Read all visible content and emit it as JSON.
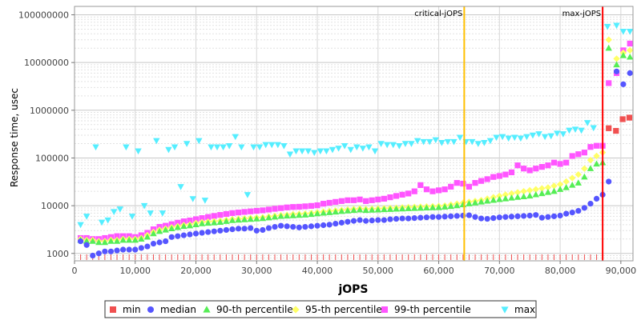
{
  "chart_data": {
    "type": "scatter",
    "title": "",
    "xlabel": "jOPS",
    "ylabel": "Response time, usec",
    "y_scale": "log",
    "xlim": [
      0,
      92000
    ],
    "ylim": [
      700,
      150000000
    ],
    "grid": true,
    "legend_placement": "bottom",
    "x_tick_labels": [
      "0",
      "10,000",
      "20,000",
      "30,000",
      "40,000",
      "50,000",
      "60,000",
      "70,000",
      "80,000",
      "90,000"
    ],
    "y_tick_labels": [
      "1000",
      "10000",
      "100000",
      "1000000",
      "10000000",
      "100000000"
    ],
    "annotations": [
      {
        "label": "critical-jOPS",
        "x": 64200,
        "color": "#ffc000"
      },
      {
        "label": "max-jOPS",
        "x": 87000,
        "color": "#ff0000"
      }
    ],
    "series": [
      {
        "name": "min",
        "color": "#f05050",
        "marker": "square",
        "x": [
          88000,
          89200,
          90300,
          91400
        ],
        "y": [
          420000,
          370000,
          650000,
          700000
        ]
      },
      {
        "name": "median",
        "color": "#5555ff",
        "marker": "circle",
        "x": [
          1000,
          2000,
          3000,
          4000,
          5000,
          6000,
          7000,
          8000,
          9000,
          10000,
          11000,
          12000,
          13000,
          14000,
          15000,
          16000,
          17000,
          18000,
          19000,
          20000,
          21000,
          22000,
          23000,
          24000,
          25000,
          26000,
          27000,
          28000,
          29000,
          30000,
          31000,
          32000,
          33000,
          34000,
          35000,
          36000,
          37000,
          38000,
          39000,
          40000,
          41000,
          42000,
          43000,
          44000,
          45000,
          46000,
          47000,
          48000,
          49000,
          50000,
          51000,
          52000,
          53000,
          54000,
          55000,
          56000,
          57000,
          58000,
          59000,
          60000,
          61000,
          62000,
          63000,
          64000,
          65000,
          66000,
          67000,
          68000,
          69000,
          70000,
          71000,
          72000,
          73000,
          74000,
          75000,
          76000,
          77000,
          78000,
          79000,
          80000,
          81000,
          82000,
          83000,
          84000,
          85000,
          86000,
          87000,
          88000,
          89300,
          90400,
          91500
        ],
        "y": [
          1800,
          1500,
          900,
          1000,
          1100,
          1100,
          1150,
          1200,
          1200,
          1200,
          1300,
          1400,
          1600,
          1700,
          1800,
          2200,
          2300,
          2400,
          2500,
          2600,
          2700,
          2800,
          2900,
          3000,
          3100,
          3200,
          3300,
          3300,
          3400,
          3000,
          3100,
          3400,
          3600,
          3800,
          3700,
          3600,
          3500,
          3600,
          3700,
          3800,
          3900,
          4000,
          4200,
          4400,
          4600,
          4800,
          5000,
          4800,
          4900,
          5000,
          5000,
          5200,
          5300,
          5400,
          5400,
          5500,
          5600,
          5700,
          5800,
          5800,
          5900,
          6000,
          6100,
          6200,
          6300,
          5800,
          5400,
          5300,
          5500,
          5700,
          5800,
          5900,
          6000,
          6100,
          6200,
          6400,
          5600,
          5800,
          6000,
          6200,
          6800,
          7200,
          7800,
          9000,
          11000,
          14000,
          17000,
          32000,
          6500000,
          3500000,
          6000000
        ]
      },
      {
        "name": "90-th percentile",
        "color": "#55ee55",
        "marker": "triangle-up",
        "x": [
          1000,
          2000,
          3000,
          4000,
          5000,
          6000,
          7000,
          8000,
          9000,
          10000,
          11000,
          12000,
          13000,
          14000,
          15000,
          16000,
          17000,
          18000,
          19000,
          20000,
          21000,
          22000,
          23000,
          24000,
          25000,
          26000,
          27000,
          28000,
          29000,
          30000,
          31000,
          32000,
          33000,
          34000,
          35000,
          36000,
          37000,
          38000,
          39000,
          40000,
          41000,
          42000,
          43000,
          44000,
          45000,
          46000,
          47000,
          48000,
          49000,
          50000,
          51000,
          52000,
          53000,
          54000,
          55000,
          56000,
          57000,
          58000,
          59000,
          60000,
          61000,
          62000,
          63000,
          64000,
          65000,
          66000,
          67000,
          68000,
          69000,
          70000,
          71000,
          72000,
          73000,
          74000,
          75000,
          76000,
          77000,
          78000,
          79000,
          80000,
          81000,
          82000,
          83000,
          84000,
          85000,
          86000,
          87000,
          88000,
          89300,
          90400,
          91500
        ],
        "y": [
          1900,
          1800,
          1800,
          1700,
          1700,
          1800,
          1800,
          1900,
          1900,
          1900,
          2000,
          2200,
          2600,
          2900,
          3100,
          3300,
          3500,
          3700,
          3800,
          4000,
          4200,
          4300,
          4400,
          4500,
          4700,
          4900,
          5000,
          5100,
          5200,
          5300,
          5400,
          5600,
          5800,
          6000,
          6100,
          6200,
          6300,
          6400,
          6600,
          6800,
          7000,
          7200,
          7400,
          7600,
          7800,
          8000,
          8200,
          8000,
          8100,
          8200,
          8300,
          8400,
          8500,
          8600,
          8700,
          8800,
          8900,
          9000,
          9100,
          9200,
          9400,
          9700,
          10000,
          10500,
          11000,
          11500,
          12000,
          12500,
          13000,
          13500,
          14000,
          14500,
          15000,
          15500,
          16000,
          17000,
          18000,
          19000,
          20000,
          22000,
          24000,
          27000,
          30000,
          40000,
          60000,
          75000,
          80000,
          20000000,
          9000000,
          14000000,
          13000000
        ]
      },
      {
        "name": "95-th percentile",
        "color": "#ffff66",
        "marker": "diamond",
        "x": [
          1000,
          2000,
          3000,
          4000,
          5000,
          6000,
          7000,
          8000,
          9000,
          10000,
          11000,
          12000,
          13000,
          14000,
          15000,
          16000,
          17000,
          18000,
          19000,
          20000,
          21000,
          22000,
          23000,
          24000,
          25000,
          26000,
          27000,
          28000,
          29000,
          30000,
          31000,
          32000,
          33000,
          34000,
          35000,
          36000,
          37000,
          38000,
          39000,
          40000,
          41000,
          42000,
          43000,
          44000,
          45000,
          46000,
          47000,
          48000,
          49000,
          50000,
          51000,
          52000,
          53000,
          54000,
          55000,
          56000,
          57000,
          58000,
          59000,
          60000,
          61000,
          62000,
          63000,
          64000,
          65000,
          66000,
          67000,
          68000,
          69000,
          70000,
          71000,
          72000,
          73000,
          74000,
          75000,
          76000,
          77000,
          78000,
          79000,
          80000,
          81000,
          82000,
          83000,
          84000,
          85000,
          86000,
          87000,
          88000,
          89300,
          90400,
          91500
        ],
        "y": [
          2000,
          1900,
          1900,
          1800,
          1800,
          1900,
          1900,
          2000,
          2000,
          2000,
          2100,
          2400,
          2800,
          3100,
          3300,
          3500,
          3700,
          3900,
          4000,
          4300,
          4500,
          4600,
          4700,
          4800,
          5000,
          5200,
          5300,
          5400,
          5500,
          5600,
          5700,
          5900,
          6100,
          6300,
          6400,
          6600,
          6700,
          6800,
          7000,
          7200,
          7500,
          7700,
          7900,
          8100,
          8300,
          8500,
          8700,
          8500,
          8600,
          8700,
          8800,
          8900,
          9000,
          9200,
          9300,
          9400,
          9500,
          9600,
          9700,
          9800,
          10000,
          10500,
          11000,
          11500,
          12000,
          12500,
          13000,
          14000,
          15000,
          16000,
          17000,
          18000,
          19000,
          20000,
          21000,
          22000,
          23000,
          24000,
          26000,
          28000,
          32000,
          38000,
          45000,
          60000,
          90000,
          110000,
          130000,
          30000000,
          12000000,
          16000000,
          18000000
        ]
      },
      {
        "name": "99-th percentile",
        "color": "#ff55ff",
        "marker": "square",
        "x": [
          1000,
          2000,
          3000,
          4000,
          5000,
          6000,
          7000,
          8000,
          9000,
          10000,
          11000,
          12000,
          13000,
          14000,
          15000,
          16000,
          17000,
          18000,
          19000,
          20000,
          21000,
          22000,
          23000,
          24000,
          25000,
          26000,
          27000,
          28000,
          29000,
          30000,
          31000,
          32000,
          33000,
          34000,
          35000,
          36000,
          37000,
          38000,
          39000,
          40000,
          41000,
          42000,
          43000,
          44000,
          45000,
          46000,
          47000,
          48000,
          49000,
          50000,
          51000,
          52000,
          53000,
          54000,
          55000,
          56000,
          57000,
          58000,
          59000,
          60000,
          61000,
          62000,
          63000,
          64000,
          65000,
          66000,
          67000,
          68000,
          69000,
          70000,
          71000,
          72000,
          73000,
          74000,
          75000,
          76000,
          77000,
          78000,
          79000,
          80000,
          81000,
          82000,
          83000,
          84000,
          85000,
          86000,
          87000,
          88000,
          89300,
          90400,
          91500
        ],
        "y": [
          2100,
          2100,
          2000,
          2000,
          2100,
          2200,
          2300,
          2300,
          2300,
          2200,
          2400,
          2700,
          3200,
          3600,
          3800,
          4100,
          4400,
          4700,
          4900,
          5200,
          5500,
          5800,
          6100,
          6400,
          6700,
          7000,
          7200,
          7400,
          7600,
          7800,
          8000,
          8300,
          8600,
          8900,
          9200,
          9400,
          9500,
          9700,
          9900,
          10200,
          11000,
          11500,
          12000,
          12500,
          13000,
          13000,
          13500,
          12500,
          13000,
          13500,
          14000,
          15000,
          16000,
          17000,
          18000,
          20000,
          27000,
          22000,
          20000,
          21000,
          22000,
          25000,
          30000,
          29000,
          25000,
          30000,
          33000,
          36000,
          40000,
          42000,
          45000,
          50000,
          70000,
          60000,
          55000,
          60000,
          65000,
          70000,
          80000,
          75000,
          80000,
          110000,
          120000,
          130000,
          170000,
          180000,
          180000,
          3700000,
          6000000,
          18000000,
          25000000
        ]
      },
      {
        "name": "max",
        "color": "#55eeff",
        "marker": "triangle-down",
        "x": [
          1000,
          2000,
          3500,
          4500,
          5500,
          6500,
          7500,
          8500,
          9500,
          10500,
          11500,
          12500,
          13500,
          14500,
          15500,
          16500,
          17500,
          18500,
          19500,
          20500,
          21500,
          22500,
          23500,
          24500,
          25500,
          26500,
          27500,
          28500,
          29500,
          30500,
          31500,
          32500,
          33500,
          34500,
          35500,
          36500,
          37500,
          38500,
          39500,
          40500,
          41500,
          42500,
          43500,
          44500,
          45500,
          46500,
          47500,
          48500,
          49500,
          50500,
          51500,
          52500,
          53500,
          54500,
          55500,
          56500,
          57500,
          58500,
          59500,
          60500,
          61500,
          62500,
          63500,
          64500,
          65500,
          66500,
          67500,
          68500,
          69500,
          70500,
          71500,
          72500,
          73500,
          74500,
          75500,
          76500,
          77500,
          78500,
          79500,
          80500,
          81500,
          82500,
          83500,
          84500,
          85500,
          87800,
          89300,
          90400,
          91500
        ],
        "y": [
          4000,
          6000,
          170000,
          4500,
          5000,
          7500,
          8500,
          170000,
          6000,
          140000,
          10000,
          7000,
          230000,
          7000,
          150000,
          170000,
          25000,
          200000,
          14000,
          230000,
          13000,
          170000,
          170000,
          170000,
          180000,
          280000,
          170000,
          17000,
          170000,
          170000,
          190000,
          190000,
          190000,
          180000,
          120000,
          140000,
          140000,
          140000,
          130000,
          140000,
          140000,
          150000,
          160000,
          180000,
          150000,
          170000,
          160000,
          170000,
          140000,
          200000,
          190000,
          190000,
          180000,
          200000,
          200000,
          230000,
          220000,
          220000,
          240000,
          210000,
          220000,
          220000,
          270000,
          220000,
          220000,
          200000,
          210000,
          230000,
          270000,
          280000,
          260000,
          270000,
          260000,
          280000,
          300000,
          320000,
          280000,
          290000,
          330000,
          320000,
          380000,
          400000,
          380000,
          550000,
          430000,
          57000000,
          60000000,
          45000000,
          45000000
        ]
      }
    ]
  }
}
